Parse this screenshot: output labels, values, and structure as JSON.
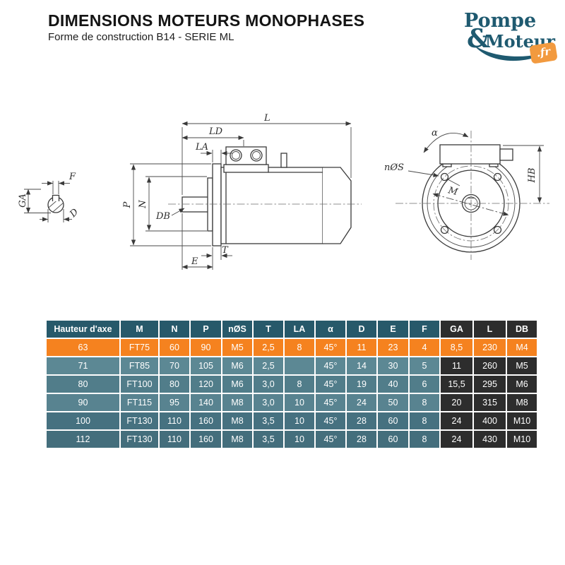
{
  "header": {
    "title": "DIMENSIONS MOTEURS MONOPHASES",
    "subtitle": "Forme de construction B14 - SERIE ML"
  },
  "logo": {
    "word1": "Pompe",
    "ampersand": "&",
    "word2": "Moteur",
    "tld": ".fr",
    "teal_color": "#1f5a70",
    "orange_color": "#f29a3f"
  },
  "diagram": {
    "labels": {
      "l": "L",
      "ld": "LD",
      "la": "LA",
      "p": "P",
      "n": "N",
      "db": "DB",
      "t": "T",
      "e": "E",
      "ga": "GA",
      "f": "F",
      "d": "D",
      "alpha": "α",
      "nos": "nØS",
      "m": "M",
      "hb": "HB"
    }
  },
  "table": {
    "columns": [
      "Hauteur d'axe",
      "M",
      "N",
      "P",
      "nØS",
      "T",
      "LA",
      "α",
      "D",
      "E",
      "F",
      "GA",
      "L",
      "DB"
    ],
    "rows": [
      [
        "63",
        "FT75",
        "60",
        "90",
        "M5",
        "2,5",
        "8",
        "45°",
        "11",
        "23",
        "4",
        "8,5",
        "230",
        "M4"
      ],
      [
        "71",
        "FT85",
        "70",
        "105",
        "M6",
        "2,5",
        "",
        "45°",
        "14",
        "30",
        "5",
        "11",
        "260",
        "M5"
      ],
      [
        "80",
        "FT100",
        "80",
        "120",
        "M6",
        "3,0",
        "8",
        "45°",
        "19",
        "40",
        "6",
        "15,5",
        "295",
        "M6"
      ],
      [
        "90",
        "FT115",
        "95",
        "140",
        "M8",
        "3,0",
        "10",
        "45°",
        "24",
        "50",
        "8",
        "20",
        "315",
        "M8"
      ],
      [
        "100",
        "FT130",
        "110",
        "160",
        "M8",
        "3,5",
        "10",
        "45°",
        "28",
        "60",
        "8",
        "24",
        "400",
        "M10"
      ],
      [
        "112",
        "FT130",
        "110",
        "160",
        "M8",
        "3,5",
        "10",
        "45°",
        "28",
        "60",
        "8",
        "24",
        "430",
        "M10"
      ]
    ],
    "highlight_row_index": 0,
    "dark_columns_from": 11,
    "colors": {
      "header": "#27596a",
      "highlight": "#f5821f",
      "dark_column": "#2d2d2d",
      "row_shades": [
        "#5c8894",
        "#517d8a",
        "#588390",
        "#467180",
        "#446e7c"
      ],
      "grid": "#ffffff",
      "text": "#ffffff"
    }
  }
}
